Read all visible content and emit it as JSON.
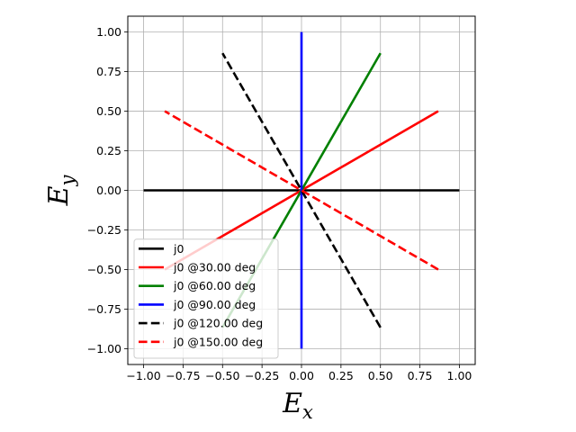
{
  "chart_data": {
    "type": "line",
    "xlabel_base": "E",
    "xlabel_sub": "x",
    "ylabel_base": "E",
    "ylabel_sub": "y",
    "xlim": [
      -1.1,
      1.1
    ],
    "ylim": [
      -1.1,
      1.1
    ],
    "xticks": [
      -1.0,
      -0.75,
      -0.5,
      -0.25,
      0.0,
      0.25,
      0.5,
      0.75,
      1.0
    ],
    "yticks": [
      -1.0,
      -0.75,
      -0.5,
      -0.25,
      0.0,
      0.25,
      0.5,
      0.75,
      1.0
    ],
    "xtick_labels": [
      "−1.00",
      "−0.75",
      "−0.50",
      "−0.25",
      "0.00",
      "0.25",
      "0.50",
      "0.75",
      "1.00"
    ],
    "ytick_labels": [
      "−1.00",
      "−0.75",
      "−0.50",
      "−0.25",
      "0.00",
      "0.25",
      "0.50",
      "0.75",
      "1.00"
    ],
    "grid": true,
    "legend_position": "lower-left",
    "series": [
      {
        "name": "j0",
        "color": "#000000",
        "dashed": false,
        "x": [
          -1.0,
          1.0
        ],
        "y": [
          0.0,
          0.0
        ]
      },
      {
        "name": "j0 @30.00 deg",
        "color": "#ff0000",
        "dashed": false,
        "x": [
          -0.866,
          0.866
        ],
        "y": [
          -0.5,
          0.5
        ]
      },
      {
        "name": "j0 @60.00 deg",
        "color": "#008000",
        "dashed": false,
        "x": [
          -0.5,
          0.5
        ],
        "y": [
          -0.866,
          0.866
        ]
      },
      {
        "name": "j0 @90.00 deg",
        "color": "#0000ff",
        "dashed": false,
        "x": [
          0.0,
          0.0
        ],
        "y": [
          -1.0,
          1.0
        ]
      },
      {
        "name": "j0 @120.00 deg",
        "color": "#000000",
        "dashed": true,
        "x": [
          0.5,
          -0.5
        ],
        "y": [
          -0.866,
          0.866
        ]
      },
      {
        "name": "j0 @150.00 deg",
        "color": "#ff0000",
        "dashed": true,
        "x": [
          0.866,
          -0.866
        ],
        "y": [
          -0.5,
          0.5
        ]
      }
    ]
  }
}
